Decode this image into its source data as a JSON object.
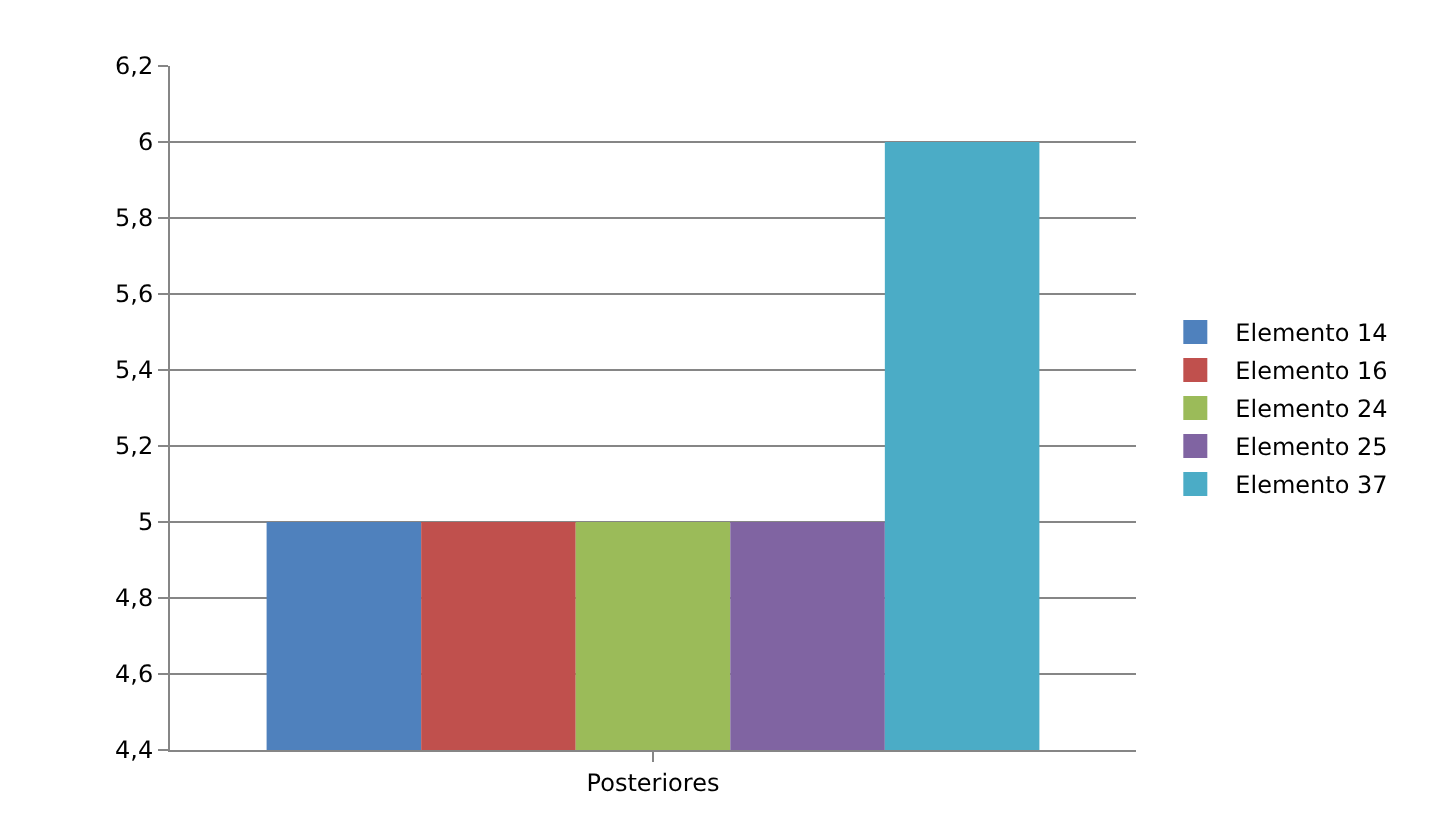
{
  "chart_data": {
    "type": "bar",
    "categories": [
      "Posteriores"
    ],
    "series": [
      {
        "name": "Elemento 14",
        "color": "#4f81bd",
        "values": [
          5
        ]
      },
      {
        "name": "Elemento 16",
        "color": "#c0504d",
        "values": [
          5
        ]
      },
      {
        "name": "Elemento 24",
        "color": "#9bbb59",
        "values": [
          5
        ]
      },
      {
        "name": "Elemento 25",
        "color": "#8064a2",
        "values": [
          5
        ]
      },
      {
        "name": "Elemento 37",
        "color": "#4bacc6",
        "values": [
          6
        ]
      }
    ],
    "ylim": [
      4.4,
      6.2
    ],
    "yticks": [
      {
        "value": 4.4,
        "label": "4,4"
      },
      {
        "value": 4.6,
        "label": "4,6"
      },
      {
        "value": 4.8,
        "label": "4,8"
      },
      5,
      {
        "value": 5.2,
        "label": "5,2"
      },
      {
        "value": 5.4,
        "label": "5,4"
      },
      {
        "value": 5.6,
        "label": "5,6"
      },
      {
        "value": 5.8,
        "label": "5,8"
      },
      6,
      {
        "value": 6.2,
        "label": "6,2"
      }
    ],
    "grid": "y",
    "legend": "right"
  }
}
